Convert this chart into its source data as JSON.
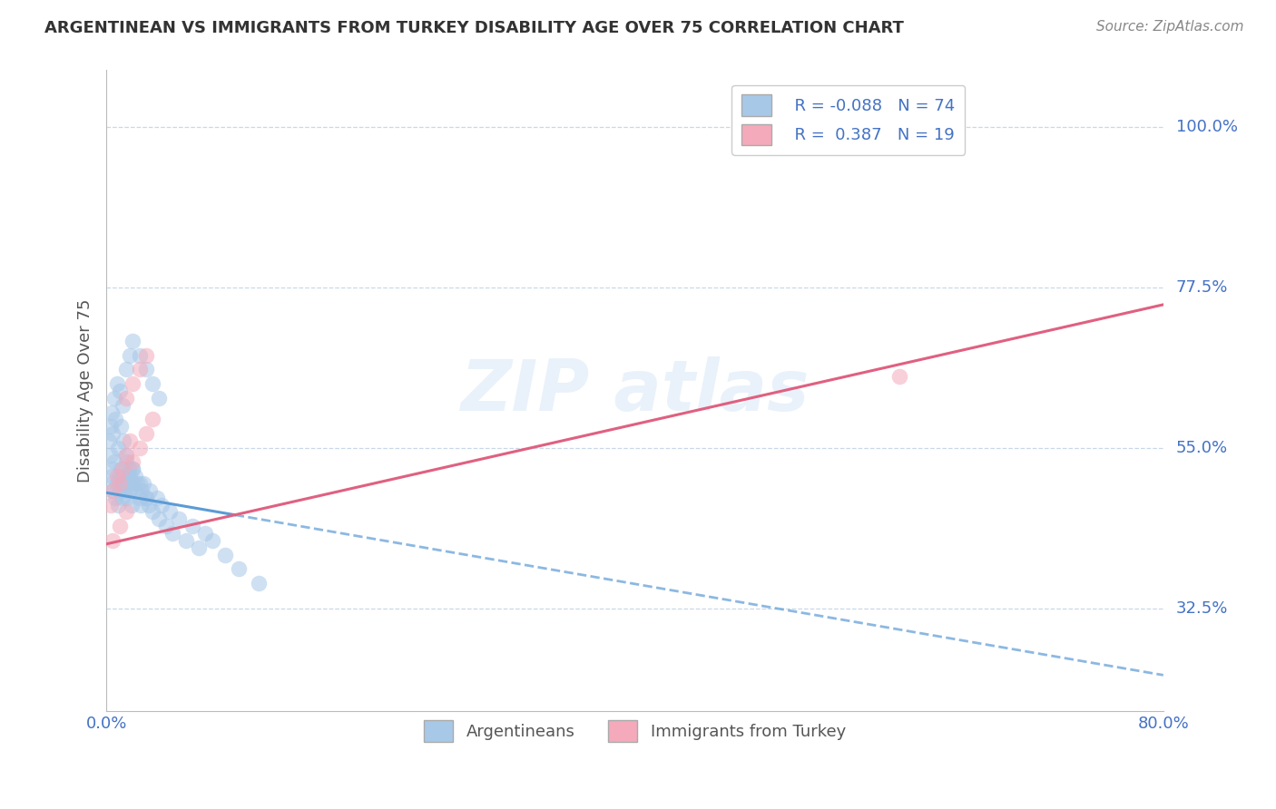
{
  "title": "ARGENTINEAN VS IMMIGRANTS FROM TURKEY DISABILITY AGE OVER 75 CORRELATION CHART",
  "source": "Source: ZipAtlas.com",
  "ylabel": "Disability Age Over 75",
  "ytick_labels": [
    "32.5%",
    "55.0%",
    "77.5%",
    "100.0%"
  ],
  "ytick_values": [
    0.325,
    0.55,
    0.775,
    1.0
  ],
  "color_blue": "#A8C8E8",
  "color_pink": "#F4AABB",
  "color_blue_line": "#5B9BD5",
  "color_pink_line": "#E06080",
  "background": "#FFFFFF",
  "xmin": 0.0,
  "xmax": 0.8,
  "ymin": 0.18,
  "ymax": 1.08,
  "arg_intercept": 0.487,
  "arg_slope": -0.32,
  "turk_intercept": 0.415,
  "turk_slope": 0.42,
  "argentinean_x": [
    0.003,
    0.004,
    0.005,
    0.005,
    0.006,
    0.007,
    0.008,
    0.009,
    0.01,
    0.01,
    0.011,
    0.012,
    0.012,
    0.013,
    0.014,
    0.015,
    0.015,
    0.016,
    0.017,
    0.018,
    0.018,
    0.019,
    0.02,
    0.02,
    0.021,
    0.022,
    0.023,
    0.025,
    0.026,
    0.027,
    0.028,
    0.03,
    0.032,
    0.033,
    0.035,
    0.038,
    0.04,
    0.042,
    0.045,
    0.048,
    0.05,
    0.055,
    0.06,
    0.065,
    0.07,
    0.075,
    0.08,
    0.09,
    0.1,
    0.115,
    0.003,
    0.004,
    0.006,
    0.008,
    0.01,
    0.012,
    0.015,
    0.018,
    0.02,
    0.025,
    0.03,
    0.035,
    0.04,
    0.002,
    0.003,
    0.005,
    0.007,
    0.009,
    0.011,
    0.013,
    0.015,
    0.02,
    0.025,
    0.03
  ],
  "argentinean_y": [
    0.5,
    0.51,
    0.49,
    0.52,
    0.53,
    0.48,
    0.5,
    0.47,
    0.51,
    0.49,
    0.52,
    0.5,
    0.48,
    0.51,
    0.49,
    0.53,
    0.5,
    0.48,
    0.52,
    0.49,
    0.51,
    0.47,
    0.5,
    0.52,
    0.49,
    0.51,
    0.5,
    0.48,
    0.47,
    0.49,
    0.5,
    0.48,
    0.47,
    0.49,
    0.46,
    0.48,
    0.45,
    0.47,
    0.44,
    0.46,
    0.43,
    0.45,
    0.42,
    0.44,
    0.41,
    0.43,
    0.42,
    0.4,
    0.38,
    0.36,
    0.58,
    0.6,
    0.62,
    0.64,
    0.63,
    0.61,
    0.66,
    0.68,
    0.7,
    0.68,
    0.66,
    0.64,
    0.62,
    0.56,
    0.54,
    0.57,
    0.59,
    0.55,
    0.58,
    0.56,
    0.54,
    0.52,
    0.5,
    0.48
  ],
  "turkey_x": [
    0.003,
    0.005,
    0.008,
    0.01,
    0.012,
    0.015,
    0.018,
    0.02,
    0.025,
    0.03,
    0.035,
    0.015,
    0.02,
    0.025,
    0.03,
    0.01,
    0.015,
    0.005,
    0.6
  ],
  "turkey_y": [
    0.47,
    0.49,
    0.51,
    0.5,
    0.52,
    0.54,
    0.56,
    0.53,
    0.55,
    0.57,
    0.59,
    0.62,
    0.64,
    0.66,
    0.68,
    0.44,
    0.46,
    0.42,
    0.65
  ]
}
